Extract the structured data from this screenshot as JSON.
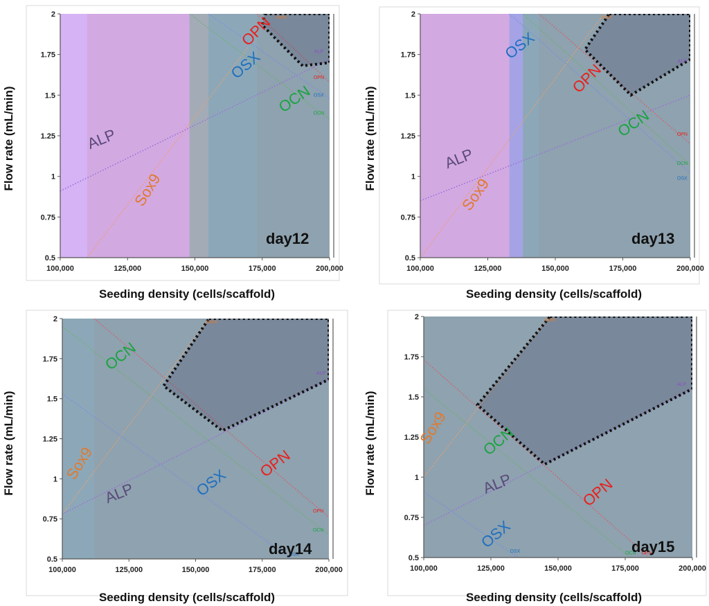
{
  "chart_data": [
    {
      "type": "area",
      "title": "day12",
      "xlabel": "Seeding density (cells/scaffold)",
      "ylabel": "Flow rate (mL/min)",
      "xlim": [
        100000,
        200000
      ],
      "ylim": [
        0.5,
        2
      ],
      "xticks": [
        "100,000",
        "125,000",
        "150,000",
        "175,000",
        "200,000"
      ],
      "yticks": [
        "0.5",
        "0.75",
        "1",
        "1.25",
        "1.5",
        "1.75",
        "2"
      ],
      "series": [
        {
          "name": "ALP",
          "side": "above",
          "line": [
            [
              100000,
              0.91
            ],
            [
              200000,
              1.72
            ]
          ]
        },
        {
          "name": "Sox9",
          "side": "below",
          "line": [
            [
              110000,
              0.5
            ],
            [
              170000,
              1.8
            ]
          ]
        },
        {
          "name": "OPN",
          "side": "above",
          "line": [
            [
              173000,
              2.0
            ],
            [
              200000,
              1.58
            ]
          ]
        },
        {
          "name": "OSX",
          "side": "above",
          "line": [
            [
              155000,
              2.0
            ],
            [
              200000,
              1.48
            ]
          ]
        },
        {
          "name": "OCN",
          "side": "above",
          "line": [
            [
              148000,
              2.0
            ],
            [
              200000,
              1.35
            ]
          ]
        }
      ],
      "labels": [
        {
          "text": "ALP",
          "x": 116000,
          "y": 1.2,
          "angle": -22,
          "color": "#5a4a7a"
        },
        {
          "text": "Sox9",
          "x": 134000,
          "y": 0.9,
          "angle": -58,
          "color": "#e07a30"
        },
        {
          "text": "OPN",
          "x": 174000,
          "y": 1.87,
          "angle": -45,
          "color": "#e8201c"
        },
        {
          "text": "OSX",
          "x": 170000,
          "y": 1.66,
          "angle": -40,
          "color": "#1f6fbf"
        },
        {
          "text": "OCN",
          "x": 188000,
          "y": 1.45,
          "angle": -35,
          "color": "#1aa340"
        }
      ],
      "edge_labels": [
        {
          "text": "Sox9",
          "x": 182000,
          "y": 1.97,
          "color": "#e07a30"
        },
        {
          "text": "ALP",
          "x": 196000,
          "y": 1.76,
          "color": "#8a50c8"
        },
        {
          "text": "OPN",
          "x": 196000,
          "y": 1.6,
          "color": "#e8201c"
        },
        {
          "text": "OSX",
          "x": 196000,
          "y": 1.49,
          "color": "#1f6fbf"
        },
        {
          "text": "OCN",
          "x": 196000,
          "y": 1.38,
          "color": "#1aa340"
        }
      ],
      "design_space": [
        [
          176000,
          2.0
        ],
        [
          200000,
          2.0
        ],
        [
          200000,
          1.7
        ],
        [
          190000,
          1.68
        ],
        [
          175000,
          1.93
        ]
      ]
    },
    {
      "type": "area",
      "title": "day13",
      "xlabel": "Seeding density (cells/scaffold)",
      "ylabel": "Flow rate (mL/min)",
      "xlim": [
        100000,
        200000
      ],
      "ylim": [
        0.5,
        2
      ],
      "xticks": [
        "100,000",
        "125,000",
        "150,000",
        "175,000",
        "200,000"
      ],
      "yticks": [
        "0.5",
        "0.75",
        "1",
        "1.25",
        "1.5",
        "1.75",
        "2"
      ],
      "series": [
        {
          "name": "ALP",
          "side": "above",
          "line": [
            [
              100000,
              0.85
            ],
            [
              200000,
              1.5
            ]
          ]
        },
        {
          "name": "Sox9",
          "side": "below",
          "line": [
            [
              100000,
              0.5
            ],
            [
              168000,
              2.0
            ]
          ]
        },
        {
          "name": "OPN",
          "side": "above",
          "line": [
            [
              144000,
              2.0
            ],
            [
              200000,
              1.2
            ]
          ]
        },
        {
          "name": "OSX",
          "side": "above",
          "line": [
            [
              133000,
              2.0
            ],
            [
              200000,
              1.02
            ]
          ]
        },
        {
          "name": "OCN",
          "side": "above",
          "line": [
            [
              138000,
              2.0
            ],
            [
              200000,
              1.07
            ]
          ]
        }
      ],
      "labels": [
        {
          "text": "ALP",
          "x": 115000,
          "y": 1.08,
          "angle": -22,
          "color": "#5a4a7a"
        },
        {
          "text": "Sox9",
          "x": 122000,
          "y": 0.87,
          "angle": -55,
          "color": "#e07a30"
        },
        {
          "text": "OPN",
          "x": 163000,
          "y": 1.58,
          "angle": -45,
          "color": "#e8201c"
        },
        {
          "text": "OSX",
          "x": 138000,
          "y": 1.78,
          "angle": -38,
          "color": "#1f6fbf"
        },
        {
          "text": "OCN",
          "x": 180000,
          "y": 1.3,
          "angle": -35,
          "color": "#1aa340"
        }
      ],
      "edge_labels": [
        {
          "text": "Sox9",
          "x": 169000,
          "y": 1.97,
          "color": "#e07a30"
        },
        {
          "text": "ALP",
          "x": 197000,
          "y": 1.7,
          "color": "#8a50c8"
        },
        {
          "text": "OPN",
          "x": 197000,
          "y": 1.25,
          "color": "#e8201c"
        },
        {
          "text": "OCN",
          "x": 197000,
          "y": 1.07,
          "color": "#1aa340"
        },
        {
          "text": "OSX",
          "x": 197000,
          "y": 0.98,
          "color": "#1f6fbf"
        }
      ],
      "design_space": [
        [
          170000,
          2.0
        ],
        [
          200000,
          2.0
        ],
        [
          200000,
          1.72
        ],
        [
          178000,
          1.5
        ],
        [
          161000,
          1.78
        ]
      ]
    },
    {
      "type": "area",
      "title": "day14",
      "xlabel": "Seeding density (cells/scaffold)",
      "ylabel": "Flow rate (mL/min)",
      "xlim": [
        100000,
        200000
      ],
      "ylim": [
        0.5,
        2
      ],
      "xticks": [
        "100,000",
        "125,000",
        "150,000",
        "175,000",
        "200,000"
      ],
      "yticks": [
        "0.5",
        "0.75",
        "1",
        "1.25",
        "1.5",
        "1.75",
        "2"
      ],
      "series": [
        {
          "name": "ALP",
          "side": "above",
          "line": [
            [
              100000,
              0.78
            ],
            [
              200000,
              1.62
            ]
          ]
        },
        {
          "name": "Sox9",
          "side": "below",
          "line": [
            [
              100000,
              0.78
            ],
            [
              155000,
              2.0
            ]
          ]
        },
        {
          "name": "OPN",
          "side": "above",
          "line": [
            [
              112000,
              2.0
            ],
            [
              200000,
              0.76
            ]
          ]
        },
        {
          "name": "OSX",
          "side": "above",
          "line": [
            [
              100000,
              1.53
            ],
            [
              186000,
              0.5
            ]
          ]
        },
        {
          "name": "OCN",
          "side": "above",
          "line": [
            [
              100000,
              1.95
            ],
            [
              200000,
              0.65
            ]
          ]
        }
      ],
      "labels": [
        {
          "text": "ALP",
          "x": 122000,
          "y": 0.88,
          "angle": -22,
          "color": "#5a4a7a"
        },
        {
          "text": "Sox9",
          "x": 108000,
          "y": 1.08,
          "angle": -58,
          "color": "#e07a30"
        },
        {
          "text": "OPN",
          "x": 181000,
          "y": 1.07,
          "angle": -38,
          "color": "#e8201c"
        },
        {
          "text": "OSX",
          "x": 157000,
          "y": 0.95,
          "angle": -38,
          "color": "#1f6fbf"
        },
        {
          "text": "OCN",
          "x": 123000,
          "y": 1.74,
          "angle": -38,
          "color": "#1aa340"
        }
      ],
      "edge_labels": [
        {
          "text": "Sox9",
          "x": 156000,
          "y": 1.97,
          "color": "#e07a30"
        },
        {
          "text": "ALP",
          "x": 197000,
          "y": 1.65,
          "color": "#8a50c8"
        },
        {
          "text": "OPN",
          "x": 196000,
          "y": 0.79,
          "color": "#e8201c"
        },
        {
          "text": "OCN",
          "x": 196000,
          "y": 0.67,
          "color": "#1aa340"
        },
        {
          "text": "OSX",
          "x": 187000,
          "y": 0.52,
          "color": "#1f6fbf"
        }
      ],
      "design_space": [
        [
          155000,
          2.0
        ],
        [
          200000,
          2.0
        ],
        [
          200000,
          1.62
        ],
        [
          160000,
          1.3
        ],
        [
          138000,
          1.58
        ]
      ]
    },
    {
      "type": "area",
      "title": "day15",
      "xlabel": "Seeding density (cells/scaffold)",
      "ylabel": "Flow rate (mL/min)",
      "xlim": [
        100000,
        200000
      ],
      "ylim": [
        0.5,
        2
      ],
      "xticks": [
        "100,000",
        "125,000",
        "150,000",
        "175,000",
        "200,000"
      ],
      "yticks": [
        "0.5",
        "0.75",
        "1",
        "1.25",
        "1.5",
        "1.75",
        "2"
      ],
      "series": [
        {
          "name": "ALP",
          "side": "above",
          "line": [
            [
              100000,
              0.7
            ],
            [
              200000,
              1.55
            ]
          ]
        },
        {
          "name": "Sox9",
          "side": "below",
          "line": [
            [
              100000,
              1.0
            ],
            [
              147000,
              2.0
            ]
          ]
        },
        {
          "name": "OPN",
          "side": "above",
          "line": [
            [
              100000,
              1.73
            ],
            [
              184000,
              0.5
            ]
          ]
        },
        {
          "name": "OSX",
          "side": "above",
          "line": [
            [
              100000,
              0.91
            ],
            [
              135000,
              0.5
            ]
          ]
        },
        {
          "name": "OCN",
          "side": "above",
          "line": [
            [
              100000,
              1.55
            ],
            [
              177000,
              0.5
            ]
          ]
        }
      ],
      "labels": [
        {
          "text": "ALP",
          "x": 128000,
          "y": 0.93,
          "angle": -22,
          "color": "#5a4a7a"
        },
        {
          "text": "Sox9",
          "x": 105000,
          "y": 1.29,
          "angle": -58,
          "color": "#e07a30"
        },
        {
          "text": "OPN",
          "x": 166000,
          "y": 0.88,
          "angle": -40,
          "color": "#e8201c"
        },
        {
          "text": "OSX",
          "x": 128000,
          "y": 0.62,
          "angle": -40,
          "color": "#1f6fbf"
        },
        {
          "text": "OCN",
          "x": 129000,
          "y": 1.2,
          "angle": -40,
          "color": "#1aa340"
        }
      ],
      "edge_labels": [
        {
          "text": "Sox9",
          "x": 147000,
          "y": 1.97,
          "color": "#e07a30"
        },
        {
          "text": "ALP",
          "x": 196000,
          "y": 1.57,
          "color": "#8a50c8"
        },
        {
          "text": "OSX",
          "x": 134000,
          "y": 0.53,
          "color": "#1f6fbf"
        },
        {
          "text": "OCN",
          "x": 177000,
          "y": 0.52,
          "color": "#1aa340"
        },
        {
          "text": "OPN",
          "x": 183000,
          "y": 0.52,
          "color": "#e8201c"
        }
      ],
      "design_space": [
        [
          147000,
          2.0
        ],
        [
          200000,
          2.0
        ],
        [
          200000,
          1.55
        ],
        [
          145000,
          1.08
        ],
        [
          120000,
          1.45
        ]
      ]
    }
  ],
  "colors": {
    "ALP": "#c79af2",
    "Sox9": "#f5cfa8",
    "OPN": "#e06a8a",
    "OSX": "#7f9ee8",
    "OCN": "#74ad8c",
    "ALP_line": "#9a70d8",
    "Sox9_line": "#e9a070",
    "OPN_line": "#d86070",
    "OSX_line": "#7a8fe0",
    "OCN_line": "#70b070"
  }
}
